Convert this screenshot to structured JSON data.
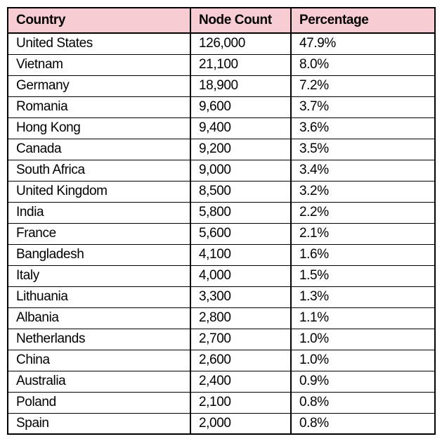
{
  "colors": {
    "header_bg": "#F8CCD3",
    "border": "#000000",
    "text": "#000000",
    "row_bg": "#FFFFFF"
  },
  "table": {
    "headers": [
      "Country",
      "Node Count",
      "Percentage"
    ],
    "rows": [
      {
        "country": "United States",
        "node_count": "126,000",
        "percentage": "47.9%"
      },
      {
        "country": "Vietnam",
        "node_count": "21,100",
        "percentage": "8.0%"
      },
      {
        "country": "Germany",
        "node_count": "18,900",
        "percentage": "7.2%"
      },
      {
        "country": "Romania",
        "node_count": "9,600",
        "percentage": "3.7%"
      },
      {
        "country": "Hong Kong",
        "node_count": "9,400",
        "percentage": "3.6%"
      },
      {
        "country": "Canada",
        "node_count": "9,200",
        "percentage": "3.5%"
      },
      {
        "country": "South Africa",
        "node_count": "9,000",
        "percentage": "3.4%"
      },
      {
        "country": "United Kingdom",
        "node_count": "8,500",
        "percentage": "3.2%"
      },
      {
        "country": "India",
        "node_count": "5,800",
        "percentage": "2.2%"
      },
      {
        "country": "France",
        "node_count": "5,600",
        "percentage": "2.1%"
      },
      {
        "country": "Bangladesh",
        "node_count": "4,100",
        "percentage": "1.6%"
      },
      {
        "country": "Italy",
        "node_count": "4,000",
        "percentage": "1.5%"
      },
      {
        "country": "Lithuania",
        "node_count": "3,300",
        "percentage": "1.3%"
      },
      {
        "country": "Albania",
        "node_count": "2,800",
        "percentage": "1.1%"
      },
      {
        "country": "Netherlands",
        "node_count": "2,700",
        "percentage": "1.0%"
      },
      {
        "country": "China",
        "node_count": "2,600",
        "percentage": "1.0%"
      },
      {
        "country": "Australia",
        "node_count": "2,400",
        "percentage": "0.9%"
      },
      {
        "country": "Poland",
        "node_count": "2,100",
        "percentage": "0.8%"
      },
      {
        "country": "Spain",
        "node_count": "2,000",
        "percentage": "0.8%"
      }
    ]
  },
  "chart_data": {
    "type": "table",
    "title": "",
    "columns": [
      "Country",
      "Node Count",
      "Percentage"
    ],
    "rows": [
      [
        "United States",
        126000,
        47.9
      ],
      [
        "Vietnam",
        21100,
        8.0
      ],
      [
        "Germany",
        18900,
        7.2
      ],
      [
        "Romania",
        9600,
        3.7
      ],
      [
        "Hong Kong",
        9400,
        3.6
      ],
      [
        "Canada",
        9200,
        3.5
      ],
      [
        "South Africa",
        9000,
        3.4
      ],
      [
        "United Kingdom",
        8500,
        3.2
      ],
      [
        "India",
        5800,
        2.2
      ],
      [
        "France",
        5600,
        2.1
      ],
      [
        "Bangladesh",
        4100,
        1.6
      ],
      [
        "Italy",
        4000,
        1.5
      ],
      [
        "Lithuania",
        3300,
        1.3
      ],
      [
        "Albania",
        2800,
        1.1
      ],
      [
        "Netherlands",
        2700,
        1.0
      ],
      [
        "China",
        2600,
        1.0
      ],
      [
        "Australia",
        2400,
        0.9
      ],
      [
        "Poland",
        2100,
        0.8
      ],
      [
        "Spain",
        2000,
        0.8
      ]
    ]
  }
}
